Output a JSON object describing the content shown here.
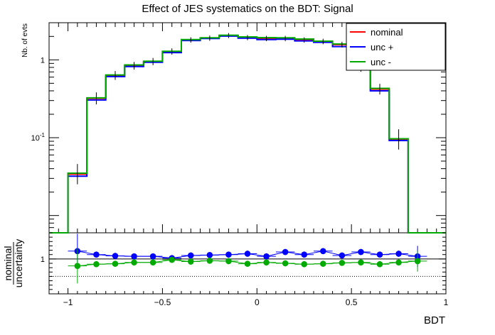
{
  "title": "Effect of JES systematics on the BDT: Signal",
  "chart_data": [
    {
      "type": "line",
      "title": "Effect of JES systematics on the BDT: Signal",
      "ylabel": "Nb. of evts",
      "yscale": "log",
      "ylim": [
        0.006,
        3.0
      ],
      "xlim": [
        -1.1,
        1.0
      ],
      "y_tick_labels": [
        "10^-1",
        "1"
      ],
      "bin_edges": [
        -1.1,
        -1.0,
        -0.9,
        -0.8,
        -0.7,
        -0.6,
        -0.5,
        -0.4,
        -0.3,
        -0.2,
        -0.1,
        0.0,
        0.1,
        0.2,
        0.3,
        0.4,
        0.5,
        0.6,
        0.7,
        0.8,
        0.9,
        1.0
      ],
      "legend_position": "top-right",
      "series": [
        {
          "name": "nominal",
          "color": "#ff0000",
          "values": [
            0.005,
            0.034,
            0.32,
            0.63,
            0.84,
            0.95,
            1.28,
            1.8,
            1.9,
            2.05,
            1.93,
            1.88,
            1.88,
            1.8,
            1.72,
            1.57,
            0.79,
            0.42,
            0.095,
            0.005,
            0.005
          ]
        },
        {
          "name": "unc +",
          "color": "#0000ff",
          "values": [
            0.005,
            0.032,
            0.305,
            0.61,
            0.82,
            0.93,
            1.24,
            1.77,
            1.88,
            2.02,
            1.9,
            1.82,
            1.84,
            1.75,
            1.68,
            1.48,
            0.76,
            0.4,
            0.092,
            0.005,
            0.005
          ]
        },
        {
          "name": "unc -",
          "color": "#00aa00",
          "values": [
            0.005,
            0.035,
            0.325,
            0.64,
            0.86,
            0.96,
            1.29,
            1.82,
            1.92,
            2.07,
            1.97,
            1.93,
            1.92,
            1.85,
            1.74,
            1.6,
            0.8,
            0.43,
            0.097,
            0.005,
            0.005
          ]
        }
      ]
    },
    {
      "type": "scatter",
      "xlabel": "BDT",
      "ylabel": "nominal / uncertainty",
      "ylabel_num": "nominal",
      "ylabel_den": "uncertainty",
      "xlim": [
        -1.1,
        1.0
      ],
      "ylim": [
        0.6,
        1.3
      ],
      "x_ticks": [
        -1,
        -0.5,
        0,
        0.5,
        1
      ],
      "x_tick_labels": [
        "−1",
        "−0.5",
        "0",
        "0.5",
        "1"
      ],
      "y_ticks": [
        1
      ],
      "y_tick_labels": [
        "1"
      ],
      "x": [
        -0.95,
        -0.85,
        -0.75,
        -0.65,
        -0.55,
        -0.45,
        -0.35,
        -0.25,
        -0.15,
        -0.05,
        0.05,
        0.15,
        0.25,
        0.35,
        0.45,
        0.55,
        0.65,
        0.75,
        0.85
      ],
      "series": [
        {
          "name": "unc +",
          "color": "#0000ff",
          "values": [
            1.09,
            1.05,
            1.035,
            1.03,
            1.03,
            1.01,
            1.04,
            1.045,
            1.05,
            1.06,
            1.03,
            1.08,
            1.05,
            1.09,
            1.04,
            1.08,
            1.05,
            1.06,
            1.03
          ]
        },
        {
          "name": "unc -",
          "color": "#00aa00",
          "values": [
            0.92,
            0.94,
            0.945,
            0.96,
            0.96,
            0.99,
            0.97,
            0.98,
            0.975,
            0.945,
            0.96,
            0.95,
            0.94,
            0.945,
            0.955,
            0.96,
            0.94,
            0.96,
            0.975
          ]
        }
      ],
      "reference_lines": [
        1.0,
        0.8
      ]
    }
  ]
}
